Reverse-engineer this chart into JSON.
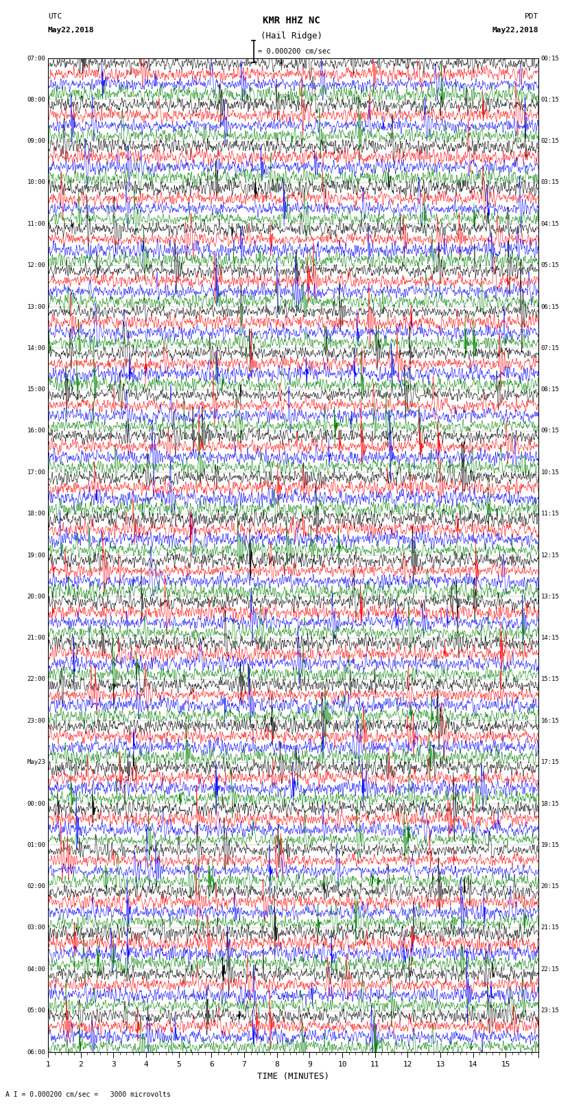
{
  "title_line1": "KMR HHZ NC",
  "title_line2": "(Hail Ridge)",
  "scale_label": "= 0.000200 cm/sec",
  "left_label_top": "UTC",
  "left_label_date": "May22,2018",
  "right_label_top": "PDT",
  "right_label_date": "May22,2018",
  "bottom_label": "TIME (MINUTES)",
  "bottom_note": "A I = 0.000200 cm/sec =   3000 microvolts",
  "utc_times": [
    "07:00",
    "08:00",
    "09:00",
    "10:00",
    "11:00",
    "12:00",
    "13:00",
    "14:00",
    "15:00",
    "16:00",
    "17:00",
    "18:00",
    "19:00",
    "20:00",
    "21:00",
    "22:00",
    "23:00",
    "May23",
    "00:00",
    "01:00",
    "02:00",
    "03:00",
    "04:00",
    "05:00",
    "06:00"
  ],
  "pdt_times": [
    "00:15",
    "01:15",
    "02:15",
    "03:15",
    "04:15",
    "05:15",
    "06:15",
    "07:15",
    "08:15",
    "09:15",
    "10:15",
    "11:15",
    "12:15",
    "13:15",
    "14:15",
    "15:15",
    "16:15",
    "17:15",
    "18:15",
    "19:15",
    "20:15",
    "21:15",
    "22:15",
    "23:15"
  ],
  "trace_colors": [
    "black",
    "red",
    "blue",
    "green"
  ],
  "num_groups": 24,
  "traces_per_group": 4,
  "minutes_per_row": 15,
  "background_color": "white",
  "fig_width": 8.5,
  "fig_height": 16.13,
  "dpi": 100
}
